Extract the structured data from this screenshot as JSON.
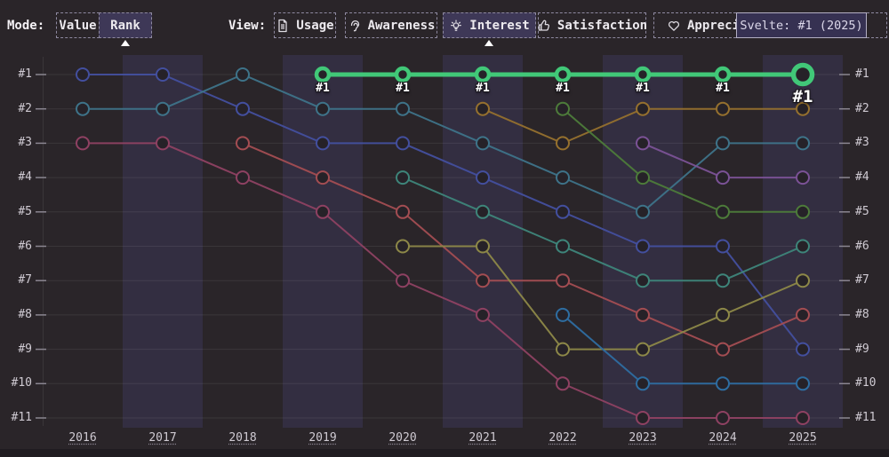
{
  "toolbar": {
    "mode_label": "Mode:",
    "modes": [
      {
        "label": "Value",
        "selected": false
      },
      {
        "label": "Rank",
        "selected": true
      }
    ],
    "view_label": "View:",
    "views": [
      {
        "label": "Usage",
        "icon": "document",
        "selected": false
      },
      {
        "label": "Awareness",
        "icon": "ear",
        "selected": false
      },
      {
        "label": "Interest",
        "icon": "lightbulb",
        "selected": true
      },
      {
        "label": "Satisfaction",
        "icon": "thumbs-up",
        "selected": false
      },
      {
        "label": "Appreciation",
        "icon": "heart",
        "selected": false
      }
    ]
  },
  "tooltip": {
    "text": "Svelte: #1 (2025)"
  },
  "ui_colors": {
    "background": "#2a2529",
    "column_band": "#332e41",
    "selected_button_bg": "#3e3857",
    "tooltip_bg": "#363152",
    "tooltip_border": "#b3afc4",
    "highlight_green": "#41c878"
  },
  "chart_data": {
    "type": "line",
    "subtype": "bump-rank-chart",
    "x": [
      2016,
      2017,
      2018,
      2019,
      2020,
      2021,
      2022,
      2023,
      2024,
      2025
    ],
    "x_labels": [
      "2016",
      "2017",
      "2018",
      "2019",
      "2020",
      "2021",
      "2022",
      "2023",
      "2024",
      "2025"
    ],
    "y_axis_labels": [
      "#1",
      "#2",
      "#3",
      "#4",
      "#5",
      "#6",
      "#7",
      "#8",
      "#9",
      "#10",
      "#11"
    ],
    "y_axis_note": "rank 1 at top to rank 11 at bottom, identical labels on left and right axes",
    "grid": "horizontal lines at each rank, alternating vertical year bands (odd years shaded)",
    "highlighted_series": {
      "name": "Svelte",
      "color": "#41c878",
      "point_label": "#1",
      "points": [
        [
          2019,
          1
        ],
        [
          2020,
          1
        ],
        [
          2021,
          1
        ],
        [
          2022,
          1
        ],
        [
          2023,
          1
        ],
        [
          2024,
          1
        ],
        [
          2025,
          1
        ]
      ]
    },
    "series": [
      {
        "id": "series-indigo",
        "color": "#434f9e",
        "points": [
          [
            2016,
            1
          ],
          [
            2017,
            1
          ],
          [
            2018,
            2
          ],
          [
            2019,
            3
          ],
          [
            2020,
            3
          ],
          [
            2021,
            4
          ],
          [
            2022,
            5
          ],
          [
            2023,
            6
          ],
          [
            2024,
            6
          ],
          [
            2025,
            9
          ]
        ]
      },
      {
        "id": "series-teal",
        "color": "#3e7389",
        "points": [
          [
            2016,
            2
          ],
          [
            2017,
            2
          ],
          [
            2018,
            1
          ],
          [
            2019,
            2
          ],
          [
            2020,
            2
          ],
          [
            2021,
            3
          ],
          [
            2022,
            4
          ],
          [
            2023,
            5
          ],
          [
            2024,
            3
          ],
          [
            2025,
            3
          ]
        ]
      },
      {
        "id": "series-rose",
        "color": "#8e4162",
        "points": [
          [
            2016,
            3
          ],
          [
            2017,
            3
          ],
          [
            2018,
            4
          ],
          [
            2019,
            5
          ],
          [
            2020,
            7
          ],
          [
            2021,
            8
          ],
          [
            2022,
            10
          ],
          [
            2023,
            11
          ],
          [
            2024,
            11
          ],
          [
            2025,
            11
          ]
        ]
      },
      {
        "id": "series-red",
        "color": "#a34d52",
        "points": [
          [
            2018,
            3
          ],
          [
            2019,
            4
          ],
          [
            2020,
            5
          ],
          [
            2021,
            7
          ],
          [
            2022,
            7
          ],
          [
            2023,
            8
          ],
          [
            2024,
            9
          ],
          [
            2025,
            8
          ]
        ]
      },
      {
        "id": "series-seagreen",
        "color": "#3e857a",
        "points": [
          [
            2020,
            4
          ],
          [
            2021,
            5
          ],
          [
            2022,
            6
          ],
          [
            2023,
            7
          ],
          [
            2024,
            7
          ],
          [
            2025,
            6
          ]
        ]
      },
      {
        "id": "series-olive",
        "color": "#8d8848",
        "points": [
          [
            2020,
            6
          ],
          [
            2021,
            6
          ],
          [
            2022,
            9
          ],
          [
            2023,
            9
          ],
          [
            2024,
            8
          ],
          [
            2025,
            7
          ]
        ]
      },
      {
        "id": "series-amber",
        "color": "#95702e",
        "points": [
          [
            2021,
            2
          ],
          [
            2022,
            3
          ],
          [
            2023,
            2
          ],
          [
            2024,
            2
          ],
          [
            2025,
            2
          ]
        ]
      },
      {
        "id": "series-green",
        "color": "#4d7b3a",
        "points": [
          [
            2022,
            2
          ],
          [
            2023,
            4
          ],
          [
            2024,
            5
          ],
          [
            2025,
            5
          ]
        ]
      },
      {
        "id": "series-blue",
        "color": "#2e6da1",
        "points": [
          [
            2022,
            8
          ],
          [
            2023,
            10
          ],
          [
            2024,
            10
          ],
          [
            2025,
            10
          ]
        ]
      },
      {
        "id": "series-purple",
        "color": "#7b5296",
        "points": [
          [
            2023,
            3
          ],
          [
            2024,
            4
          ],
          [
            2025,
            4
          ]
        ]
      }
    ],
    "style": {
      "band_color": "#332e41",
      "grid_color": "rgba(255,255,255,0.08)",
      "tick_color": "#8b8691",
      "point_fill": "#262228",
      "bottom_strip": "#201c21"
    }
  }
}
